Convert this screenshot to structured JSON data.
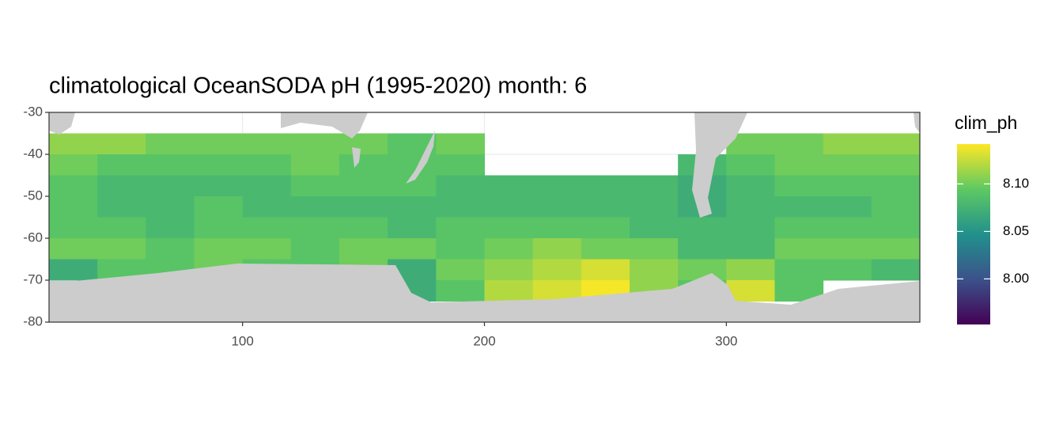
{
  "chart_data": {
    "type": "heatmap",
    "title": "climatological OceanSODA pH (1995-2020) month: 6",
    "legend_title": "clim_ph",
    "x": [
      30,
      50,
      70,
      90,
      110,
      130,
      150,
      170,
      190,
      210,
      230,
      250,
      270,
      290,
      310,
      330,
      350,
      370
    ],
    "y": [
      -32.5,
      -37.5,
      -42.5,
      -47.5,
      -52.5,
      -57.5,
      -62.5,
      -67.5,
      -72.5,
      -77.5
    ],
    "z": [
      [
        null,
        null,
        null,
        null,
        null,
        null,
        null,
        null,
        null,
        null,
        null,
        null,
        null,
        null,
        null,
        null,
        null,
        null
      ],
      [
        8.11,
        8.11,
        8.1,
        8.1,
        8.1,
        8.1,
        8.1,
        8.09,
        8.1,
        null,
        null,
        null,
        null,
        null,
        8.1,
        8.1,
        8.11,
        8.11
      ],
      [
        8.1,
        8.09,
        8.09,
        8.09,
        8.09,
        8.1,
        8.09,
        8.09,
        8.09,
        null,
        null,
        null,
        null,
        8.08,
        8.09,
        8.1,
        8.1,
        8.1
      ],
      [
        8.09,
        8.08,
        8.08,
        8.08,
        8.08,
        8.09,
        8.09,
        8.09,
        8.08,
        8.08,
        8.08,
        8.08,
        8.08,
        8.07,
        8.08,
        8.09,
        8.09,
        8.09
      ],
      [
        8.09,
        8.08,
        8.08,
        8.09,
        8.08,
        8.08,
        8.08,
        8.08,
        8.08,
        8.08,
        8.08,
        8.08,
        8.08,
        8.07,
        8.08,
        8.08,
        8.08,
        8.09
      ],
      [
        8.09,
        8.09,
        8.08,
        8.09,
        8.09,
        8.09,
        8.09,
        8.08,
        8.09,
        8.09,
        8.09,
        8.09,
        8.08,
        8.08,
        8.08,
        8.09,
        8.09,
        8.09
      ],
      [
        8.1,
        8.1,
        8.09,
        8.1,
        8.1,
        8.09,
        8.1,
        8.1,
        8.09,
        8.1,
        8.11,
        8.1,
        8.1,
        8.08,
        8.08,
        8.1,
        8.1,
        8.1
      ],
      [
        8.07,
        8.09,
        8.09,
        8.1,
        8.09,
        8.09,
        8.1,
        8.07,
        8.1,
        8.11,
        8.12,
        8.13,
        8.11,
        8.1,
        8.11,
        8.09,
        8.09,
        8.08
      ],
      [
        null,
        null,
        null,
        null,
        null,
        null,
        null,
        8.07,
        8.09,
        8.12,
        8.13,
        8.14,
        8.11,
        8.09,
        8.13,
        8.09,
        null,
        null
      ],
      [
        null,
        null,
        null,
        null,
        null,
        null,
        null,
        null,
        null,
        null,
        null,
        null,
        null,
        null,
        null,
        null,
        null,
        null
      ]
    ],
    "xlim": [
      20,
      380
    ],
    "ylim": [
      -80,
      -30
    ],
    "xticks": [
      100,
      200,
      300
    ],
    "yticks": [
      -30,
      -40,
      -50,
      -60,
      -70,
      -80
    ],
    "colorlim": [
      7.952,
      8.142
    ],
    "colorticks": [
      {
        "value": 8.0,
        "label": "8.00"
      },
      8.05,
      {
        "value": 8.1,
        "label": "8.10"
      }
    ],
    "colormap": "viridis",
    "grid": true
  }
}
